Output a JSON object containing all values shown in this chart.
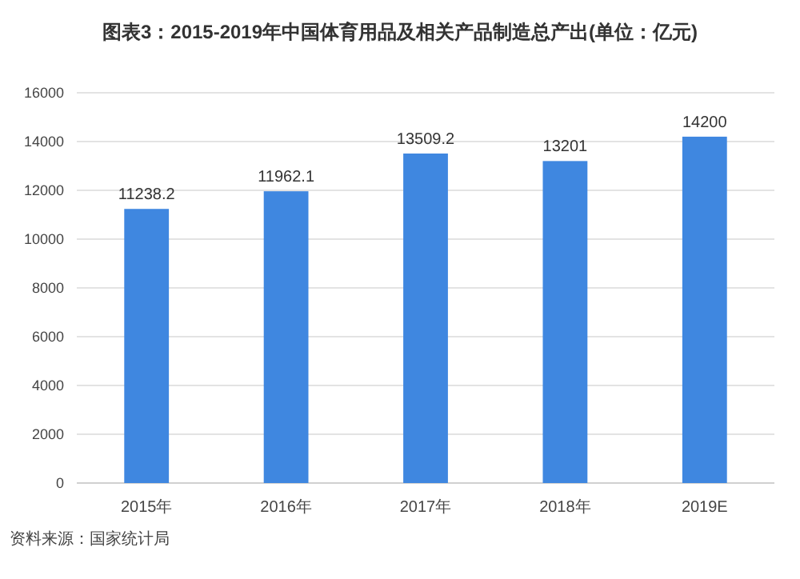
{
  "chart_data": {
    "type": "bar",
    "title": "图表3：2015-2019年中国体育用品及相关产品制造总产出(单位：亿元)",
    "categories": [
      "2015年",
      "2016年",
      "2017年",
      "2018年",
      "2019E"
    ],
    "values": [
      11238.2,
      11962.1,
      13509.2,
      13201,
      14200
    ],
    "color": "#3f87e0",
    "data_labels": true,
    "ylim": [
      0,
      16000
    ],
    "yticks": [
      0,
      2000,
      4000,
      6000,
      8000,
      10000,
      12000,
      14000,
      16000
    ],
    "grid": "y",
    "annotations": [
      "资料来源：国家统计局"
    ]
  }
}
